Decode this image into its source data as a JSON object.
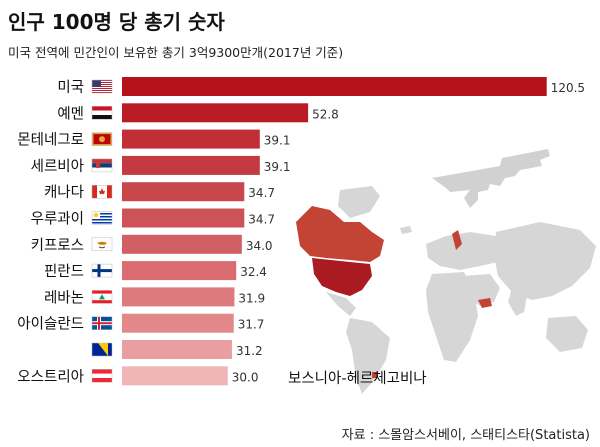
{
  "title": "인구 100명 당 총기 숫자",
  "subtitle": "미국 전역에 민간인이 보유한 총기 3억9300만개(2017년 기준)",
  "source": "자료 : 스몰암스서베이, 스태티스타(Statista)",
  "annotation": "보스니아-헤르체고비나",
  "chart_data": {
    "type": "bar",
    "orientation": "horizontal",
    "title": "인구 100명 당 총기 숫자",
    "categories": [
      "미국",
      "예멘",
      "몬테네그로",
      "세르비아",
      "캐나다",
      "우루과이",
      "키프로스",
      "핀란드",
      "레바논",
      "아이슬란드",
      "",
      "오스트리아"
    ],
    "values": [
      120.5,
      52.8,
      39.1,
      39.1,
      34.7,
      34.7,
      34.0,
      32.4,
      31.9,
      31.7,
      31.2,
      30.0
    ],
    "value_labels": [
      "120.5",
      "52.8",
      "39.1",
      "39.1",
      "34.7",
      "34.7",
      "34.0",
      "32.4",
      "31.9",
      "31.7",
      "31.2",
      "30.0"
    ],
    "xlim": [
      0,
      122
    ],
    "grid": false,
    "legend": "none",
    "colors": [
      "#b5121b",
      "#b91c25",
      "#c12e36",
      "#c43a41",
      "#c8474d",
      "#ce5359",
      "#d25f64",
      "#d86c70",
      "#dc7a7d",
      "#e2888b",
      "#e99fa2",
      "#efb5b7"
    ]
  },
  "map_colors": {
    "land": "#d4d4d4",
    "highlight": "#c0392b",
    "usa": "#a50f15"
  }
}
